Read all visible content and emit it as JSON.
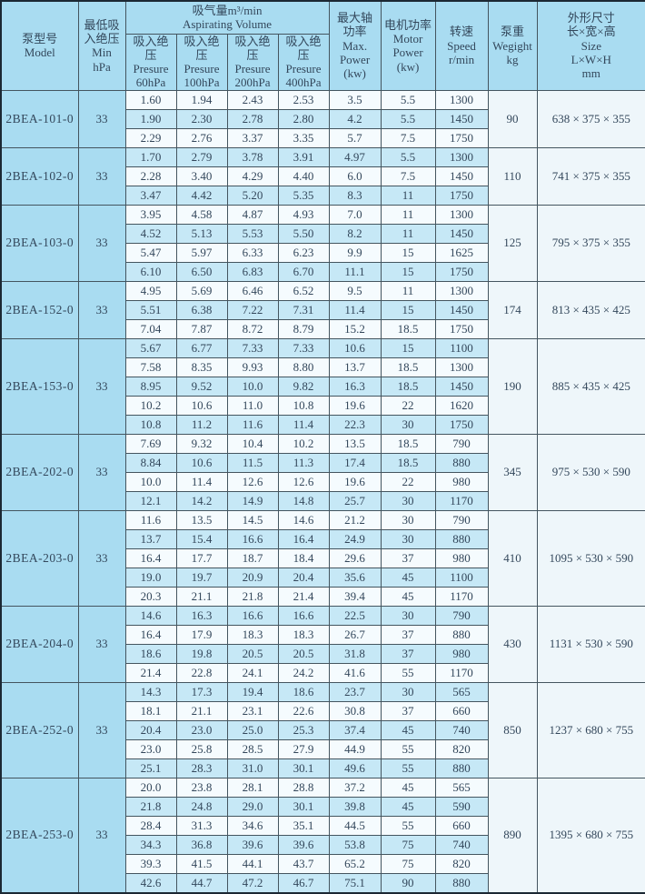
{
  "header": {
    "model": "泵型号\nModel",
    "min_pressure": "最低吸\n入绝压\nMin\nhPa",
    "volume_group": "吸气量m³/min\nAspirating Volume",
    "sub_60": "吸入绝压\nPresure\n60hPa",
    "sub_100": "吸入绝压\nPresure\n100hPa",
    "sub_200": "吸入绝压\nPresure\n200hPa",
    "sub_400": "吸入绝压\nPresure\n400hPa",
    "max_power": "最大轴\n功率\nMax.\nPower\n(kw)",
    "motor_power": "电机功率\nMotor\nPower\n(kw)",
    "speed": "转速\nSpeed\nr/min",
    "weight": "泵重\nWegight\nkg",
    "size": "外形尺寸\n长×宽×高\nSize\nL×W×H\nmm"
  },
  "colors": {
    "base_blue": "#a9dcf1",
    "row_blue": "#c6e8f6",
    "row_white": "#f5fbfe",
    "panel_light": "#eef6fa",
    "border": "#44555f",
    "text": "#33475b"
  },
  "table": {
    "groups": [
      {
        "model": "2BEA-101-0",
        "min_hpa": "33",
        "weight": "90",
        "size": "638 × 375 × 355",
        "rows": [
          [
            "1.60",
            "1.94",
            "2.43",
            "2.53",
            "3.5",
            "5.5",
            "1300"
          ],
          [
            "1.90",
            "2.30",
            "2.78",
            "2.80",
            "4.2",
            "5.5",
            "1450"
          ],
          [
            "2.29",
            "2.76",
            "3.37",
            "3.35",
            "5.7",
            "7.5",
            "1750"
          ]
        ]
      },
      {
        "model": "2BEA-102-0",
        "min_hpa": "33",
        "weight": "110",
        "size": "741 × 375 × 355",
        "rows": [
          [
            "1.70",
            "2.79",
            "3.78",
            "3.91",
            "4.97",
            "5.5",
            "1300"
          ],
          [
            "2.28",
            "3.40",
            "4.29",
            "4.40",
            "6.0",
            "7.5",
            "1450"
          ],
          [
            "3.47",
            "4.42",
            "5.20",
            "5.35",
            "8.3",
            "11",
            "1750"
          ]
        ]
      },
      {
        "model": "2BEA-103-0",
        "min_hpa": "33",
        "weight": "125",
        "size": "795 × 375 × 355",
        "rows": [
          [
            "3.95",
            "4.58",
            "4.87",
            "4.93",
            "7.0",
            "11",
            "1300"
          ],
          [
            "4.52",
            "5.13",
            "5.53",
            "5.50",
            "8.2",
            "11",
            "1450"
          ],
          [
            "5.47",
            "5.97",
            "6.33",
            "6.23",
            "9.9",
            "15",
            "1625"
          ],
          [
            "6.10",
            "6.50",
            "6.83",
            "6.70",
            "11.1",
            "15",
            "1750"
          ]
        ]
      },
      {
        "model": "2BEA-152-0",
        "min_hpa": "33",
        "weight": "174",
        "size": "813 × 435 × 425",
        "rows": [
          [
            "4.95",
            "5.69",
            "6.46",
            "6.52",
            "9.5",
            "11",
            "1300"
          ],
          [
            "5.51",
            "6.38",
            "7.22",
            "7.31",
            "11.4",
            "15",
            "1450"
          ],
          [
            "7.04",
            "7.87",
            "8.72",
            "8.79",
            "15.2",
            "18.5",
            "1750"
          ]
        ]
      },
      {
        "model": "2BEA-153-0",
        "min_hpa": "33",
        "weight": "190",
        "size": "885 × 435 × 425",
        "rows": [
          [
            "5.67",
            "6.77",
            "7.33",
            "7.33",
            "10.6",
            "15",
            "1100"
          ],
          [
            "7.58",
            "8.35",
            "9.93",
            "8.80",
            "13.7",
            "18.5",
            "1300"
          ],
          [
            "8.95",
            "9.52",
            "10.0",
            "9.82",
            "16.3",
            "18.5",
            "1450"
          ],
          [
            "10.2",
            "10.6",
            "11.0",
            "10.8",
            "19.6",
            "22",
            "1620"
          ],
          [
            "10.8",
            "11.2",
            "11.6",
            "11.4",
            "22.3",
            "30",
            "1750"
          ]
        ]
      },
      {
        "model": "2BEA-202-0",
        "min_hpa": "33",
        "weight": "345",
        "size": "975 × 530 × 590",
        "rows": [
          [
            "7.69",
            "9.32",
            "10.4",
            "10.2",
            "13.5",
            "18.5",
            "790"
          ],
          [
            "8.84",
            "10.6",
            "11.5",
            "11.3",
            "17.4",
            "18.5",
            "880"
          ],
          [
            "10.0",
            "11.4",
            "12.6",
            "12.6",
            "19.6",
            "22",
            "980"
          ],
          [
            "12.1",
            "14.2",
            "14.9",
            "14.8",
            "25.7",
            "30",
            "1170"
          ]
        ]
      },
      {
        "model": "2BEA-203-0",
        "min_hpa": "33",
        "weight": "410",
        "size": "1095 × 530 × 590",
        "rows": [
          [
            "11.6",
            "13.5",
            "14.5",
            "14.6",
            "21.2",
            "30",
            "790"
          ],
          [
            "13.7",
            "15.4",
            "16.6",
            "16.4",
            "24.9",
            "30",
            "880"
          ],
          [
            "16.4",
            "17.7",
            "18.7",
            "18.4",
            "29.6",
            "37",
            "980"
          ],
          [
            "19.0",
            "19.7",
            "20.9",
            "20.4",
            "35.6",
            "45",
            "1100"
          ],
          [
            "20.3",
            "21.1",
            "21.8",
            "21.4",
            "39.4",
            "45",
            "1170"
          ]
        ]
      },
      {
        "model": "2BEA-204-0",
        "min_hpa": "33",
        "weight": "430",
        "size": "1131 × 530 × 590",
        "rows": [
          [
            "14.6",
            "16.3",
            "16.6",
            "16.6",
            "22.5",
            "30",
            "790"
          ],
          [
            "16.4",
            "17.9",
            "18.3",
            "18.3",
            "26.7",
            "37",
            "880"
          ],
          [
            "18.6",
            "19.8",
            "20.5",
            "20.5",
            "31.8",
            "37",
            "980"
          ],
          [
            "21.4",
            "22.8",
            "24.1",
            "24.2",
            "41.6",
            "55",
            "1170"
          ]
        ]
      },
      {
        "model": "2BEA-252-0",
        "min_hpa": "33",
        "weight": "850",
        "size": "1237 × 680 × 755",
        "rows": [
          [
            "14.3",
            "17.3",
            "19.4",
            "18.6",
            "23.7",
            "30",
            "565"
          ],
          [
            "18.1",
            "21.1",
            "23.1",
            "22.6",
            "30.8",
            "37",
            "660"
          ],
          [
            "20.4",
            "23.0",
            "25.0",
            "25.3",
            "37.4",
            "45",
            "740"
          ],
          [
            "23.0",
            "25.8",
            "28.5",
            "27.9",
            "44.9",
            "55",
            "820"
          ],
          [
            "25.1",
            "28.3",
            "31.0",
            "30.1",
            "49.6",
            "55",
            "880"
          ]
        ]
      },
      {
        "model": "2BEA-253-0",
        "min_hpa": "33",
        "weight": "890",
        "size": "1395 × 680 × 755",
        "rows": [
          [
            "20.0",
            "23.8",
            "28.1",
            "28.8",
            "37.2",
            "45",
            "565"
          ],
          [
            "21.8",
            "24.8",
            "29.0",
            "30.1",
            "39.8",
            "45",
            "590"
          ],
          [
            "28.4",
            "31.3",
            "34.6",
            "35.1",
            "44.5",
            "55",
            "660"
          ],
          [
            "34.3",
            "36.8",
            "39.6",
            "39.6",
            "53.8",
            "75",
            "740"
          ],
          [
            "39.3",
            "41.5",
            "44.1",
            "43.7",
            "65.2",
            "75",
            "820"
          ],
          [
            "42.6",
            "44.7",
            "47.2",
            "46.7",
            "75.1",
            "90",
            "880"
          ]
        ]
      }
    ]
  }
}
